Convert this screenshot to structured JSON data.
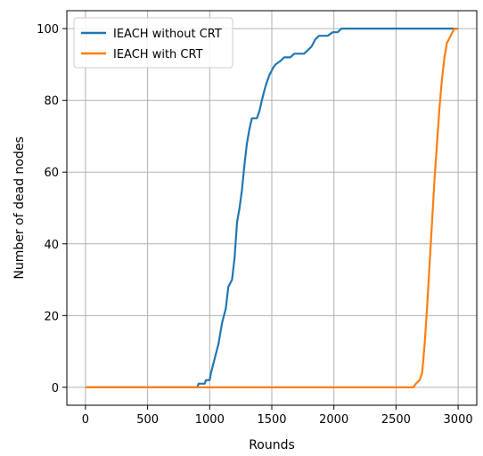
{
  "chart_data": {
    "type": "line",
    "title": "",
    "xlabel": "Rounds",
    "ylabel": "Number of dead nodes",
    "xlim": [
      -150,
      3150
    ],
    "ylim": [
      -5,
      105
    ],
    "xticks": [
      0,
      500,
      1000,
      1500,
      2000,
      2500,
      3000
    ],
    "yticks": [
      0,
      20,
      40,
      60,
      80,
      100
    ],
    "grid": true,
    "legend_position": "top-left",
    "series": [
      {
        "name": "IEACH without CRT",
        "color": "#1f77b4",
        "points": [
          [
            0,
            0
          ],
          [
            900,
            0
          ],
          [
            910,
            1
          ],
          [
            960,
            1
          ],
          [
            970,
            2
          ],
          [
            1000,
            2
          ],
          [
            1010,
            4
          ],
          [
            1040,
            8
          ],
          [
            1070,
            12
          ],
          [
            1100,
            18
          ],
          [
            1130,
            22
          ],
          [
            1150,
            28
          ],
          [
            1180,
            30
          ],
          [
            1200,
            36
          ],
          [
            1220,
            46
          ],
          [
            1240,
            50
          ],
          [
            1260,
            55
          ],
          [
            1280,
            62
          ],
          [
            1300,
            68
          ],
          [
            1320,
            72
          ],
          [
            1340,
            75
          ],
          [
            1380,
            75
          ],
          [
            1400,
            77
          ],
          [
            1420,
            80
          ],
          [
            1450,
            84
          ],
          [
            1480,
            87
          ],
          [
            1510,
            89
          ],
          [
            1530,
            90
          ],
          [
            1570,
            91
          ],
          [
            1600,
            92
          ],
          [
            1650,
            92
          ],
          [
            1680,
            93
          ],
          [
            1720,
            93
          ],
          [
            1760,
            93
          ],
          [
            1790,
            94
          ],
          [
            1820,
            95
          ],
          [
            1850,
            97
          ],
          [
            1880,
            98
          ],
          [
            1950,
            98
          ],
          [
            1990,
            99
          ],
          [
            2030,
            99
          ],
          [
            2060,
            100
          ],
          [
            3000,
            100
          ]
        ]
      },
      {
        "name": "IEACH with CRT",
        "color": "#ff7f0e",
        "points": [
          [
            0,
            0
          ],
          [
            2640,
            0
          ],
          [
            2660,
            1
          ],
          [
            2690,
            2
          ],
          [
            2710,
            4
          ],
          [
            2730,
            12
          ],
          [
            2750,
            22
          ],
          [
            2770,
            34
          ],
          [
            2790,
            46
          ],
          [
            2810,
            58
          ],
          [
            2830,
            68
          ],
          [
            2850,
            78
          ],
          [
            2870,
            86
          ],
          [
            2890,
            92
          ],
          [
            2910,
            96
          ],
          [
            2940,
            98
          ],
          [
            2970,
            100
          ],
          [
            3000,
            100
          ]
        ]
      }
    ]
  }
}
